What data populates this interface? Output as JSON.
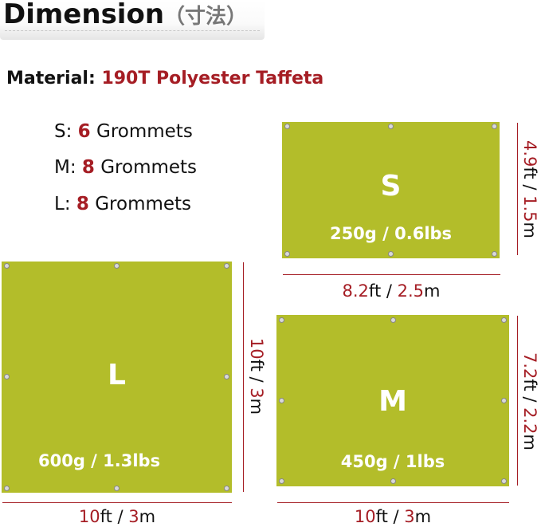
{
  "header": {
    "title": "Dimension",
    "title_suffix": "（寸法）"
  },
  "material": {
    "label": "Material:",
    "value": "190T Polyester Taffeta"
  },
  "grommets": [
    {
      "size": "S:",
      "count": "6",
      "unit": "Grommets"
    },
    {
      "size": "M:",
      "count": "8",
      "unit": "Grommets"
    },
    {
      "size": "L:",
      "count": "8",
      "unit": "Grommets"
    }
  ],
  "tarps": {
    "S": {
      "label": "S",
      "weight": "250g / 0.6lbs",
      "width_ft": "8.2",
      "width_m": "2.5",
      "height_ft": "4.9",
      "height_m": "1.5"
    },
    "L": {
      "label": "L",
      "weight": "600g / 1.3lbs",
      "width_ft": "10",
      "width_m": "3",
      "height_ft": "10",
      "height_m": "3"
    },
    "M": {
      "label": "M",
      "weight": "450g / 1lbs",
      "width_ft": "10",
      "width_m": "3",
      "height_ft": "7.2",
      "height_m": "2.2"
    }
  },
  "units": {
    "ft": "ft / ",
    "m": "m"
  },
  "colors": {
    "tarp": "#b3bd2a",
    "accent": "#a51d24"
  }
}
